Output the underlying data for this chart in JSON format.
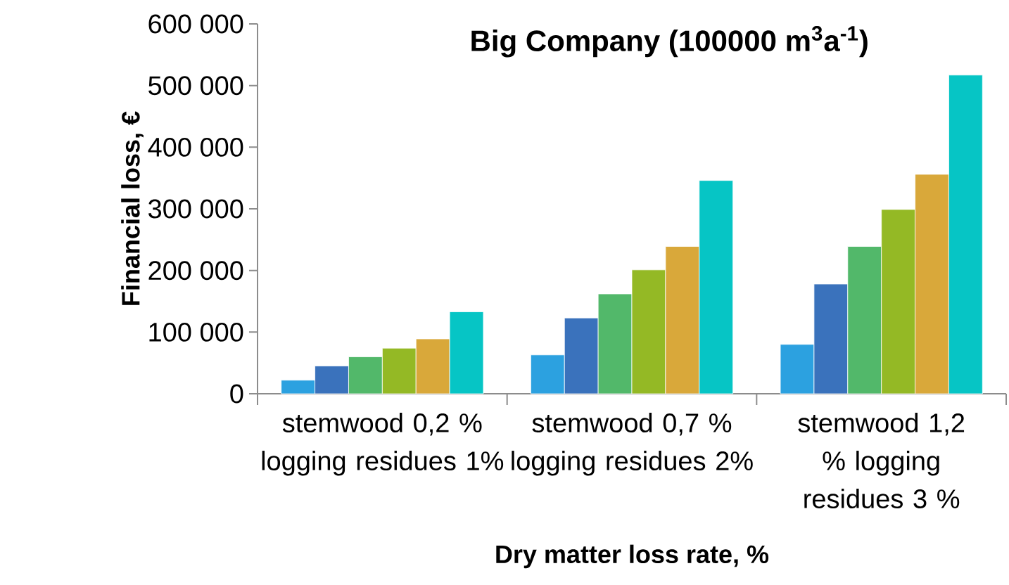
{
  "chart_data": {
    "type": "bar",
    "title": "Big Company (100000 m$^{3}$a$^{-1}$)",
    "xlabel": "Dry matter loss rate, %",
    "ylabel": "Financial loss, €",
    "categories": [
      "stemwood 0,2 % logging residues 1%",
      "stemwood 0,7 % logging residues 2%",
      "stemwood 1,2 % logging residues 3 %"
    ],
    "series": [
      {
        "color": "#2ca1e0",
        "values": [
          22000,
          63000,
          80000
        ]
      },
      {
        "color": "#3a72bc",
        "values": [
          45000,
          123000,
          178000
        ]
      },
      {
        "color": "#52b86a",
        "values": [
          60000,
          162000,
          239000
        ]
      },
      {
        "color": "#94b925",
        "values": [
          74000,
          201000,
          299000
        ]
      },
      {
        "color": "#d9a83a",
        "values": [
          89000,
          239000,
          356000
        ]
      },
      {
        "color": "#06c5c5",
        "values": [
          133000,
          346000,
          517000
        ]
      }
    ],
    "ylim": [
      0,
      600000
    ],
    "yticks": [
      {
        "value": 0,
        "label": "0"
      },
      {
        "value": 100000,
        "label": "100 000"
      },
      {
        "value": 200000,
        "label": "200 000"
      },
      {
        "value": 300000,
        "label": "300 000"
      },
      {
        "value": 400000,
        "label": "400 000"
      },
      {
        "value": 500000,
        "label": "500 000"
      },
      {
        "value": 600000,
        "label": "600 000"
      }
    ]
  }
}
